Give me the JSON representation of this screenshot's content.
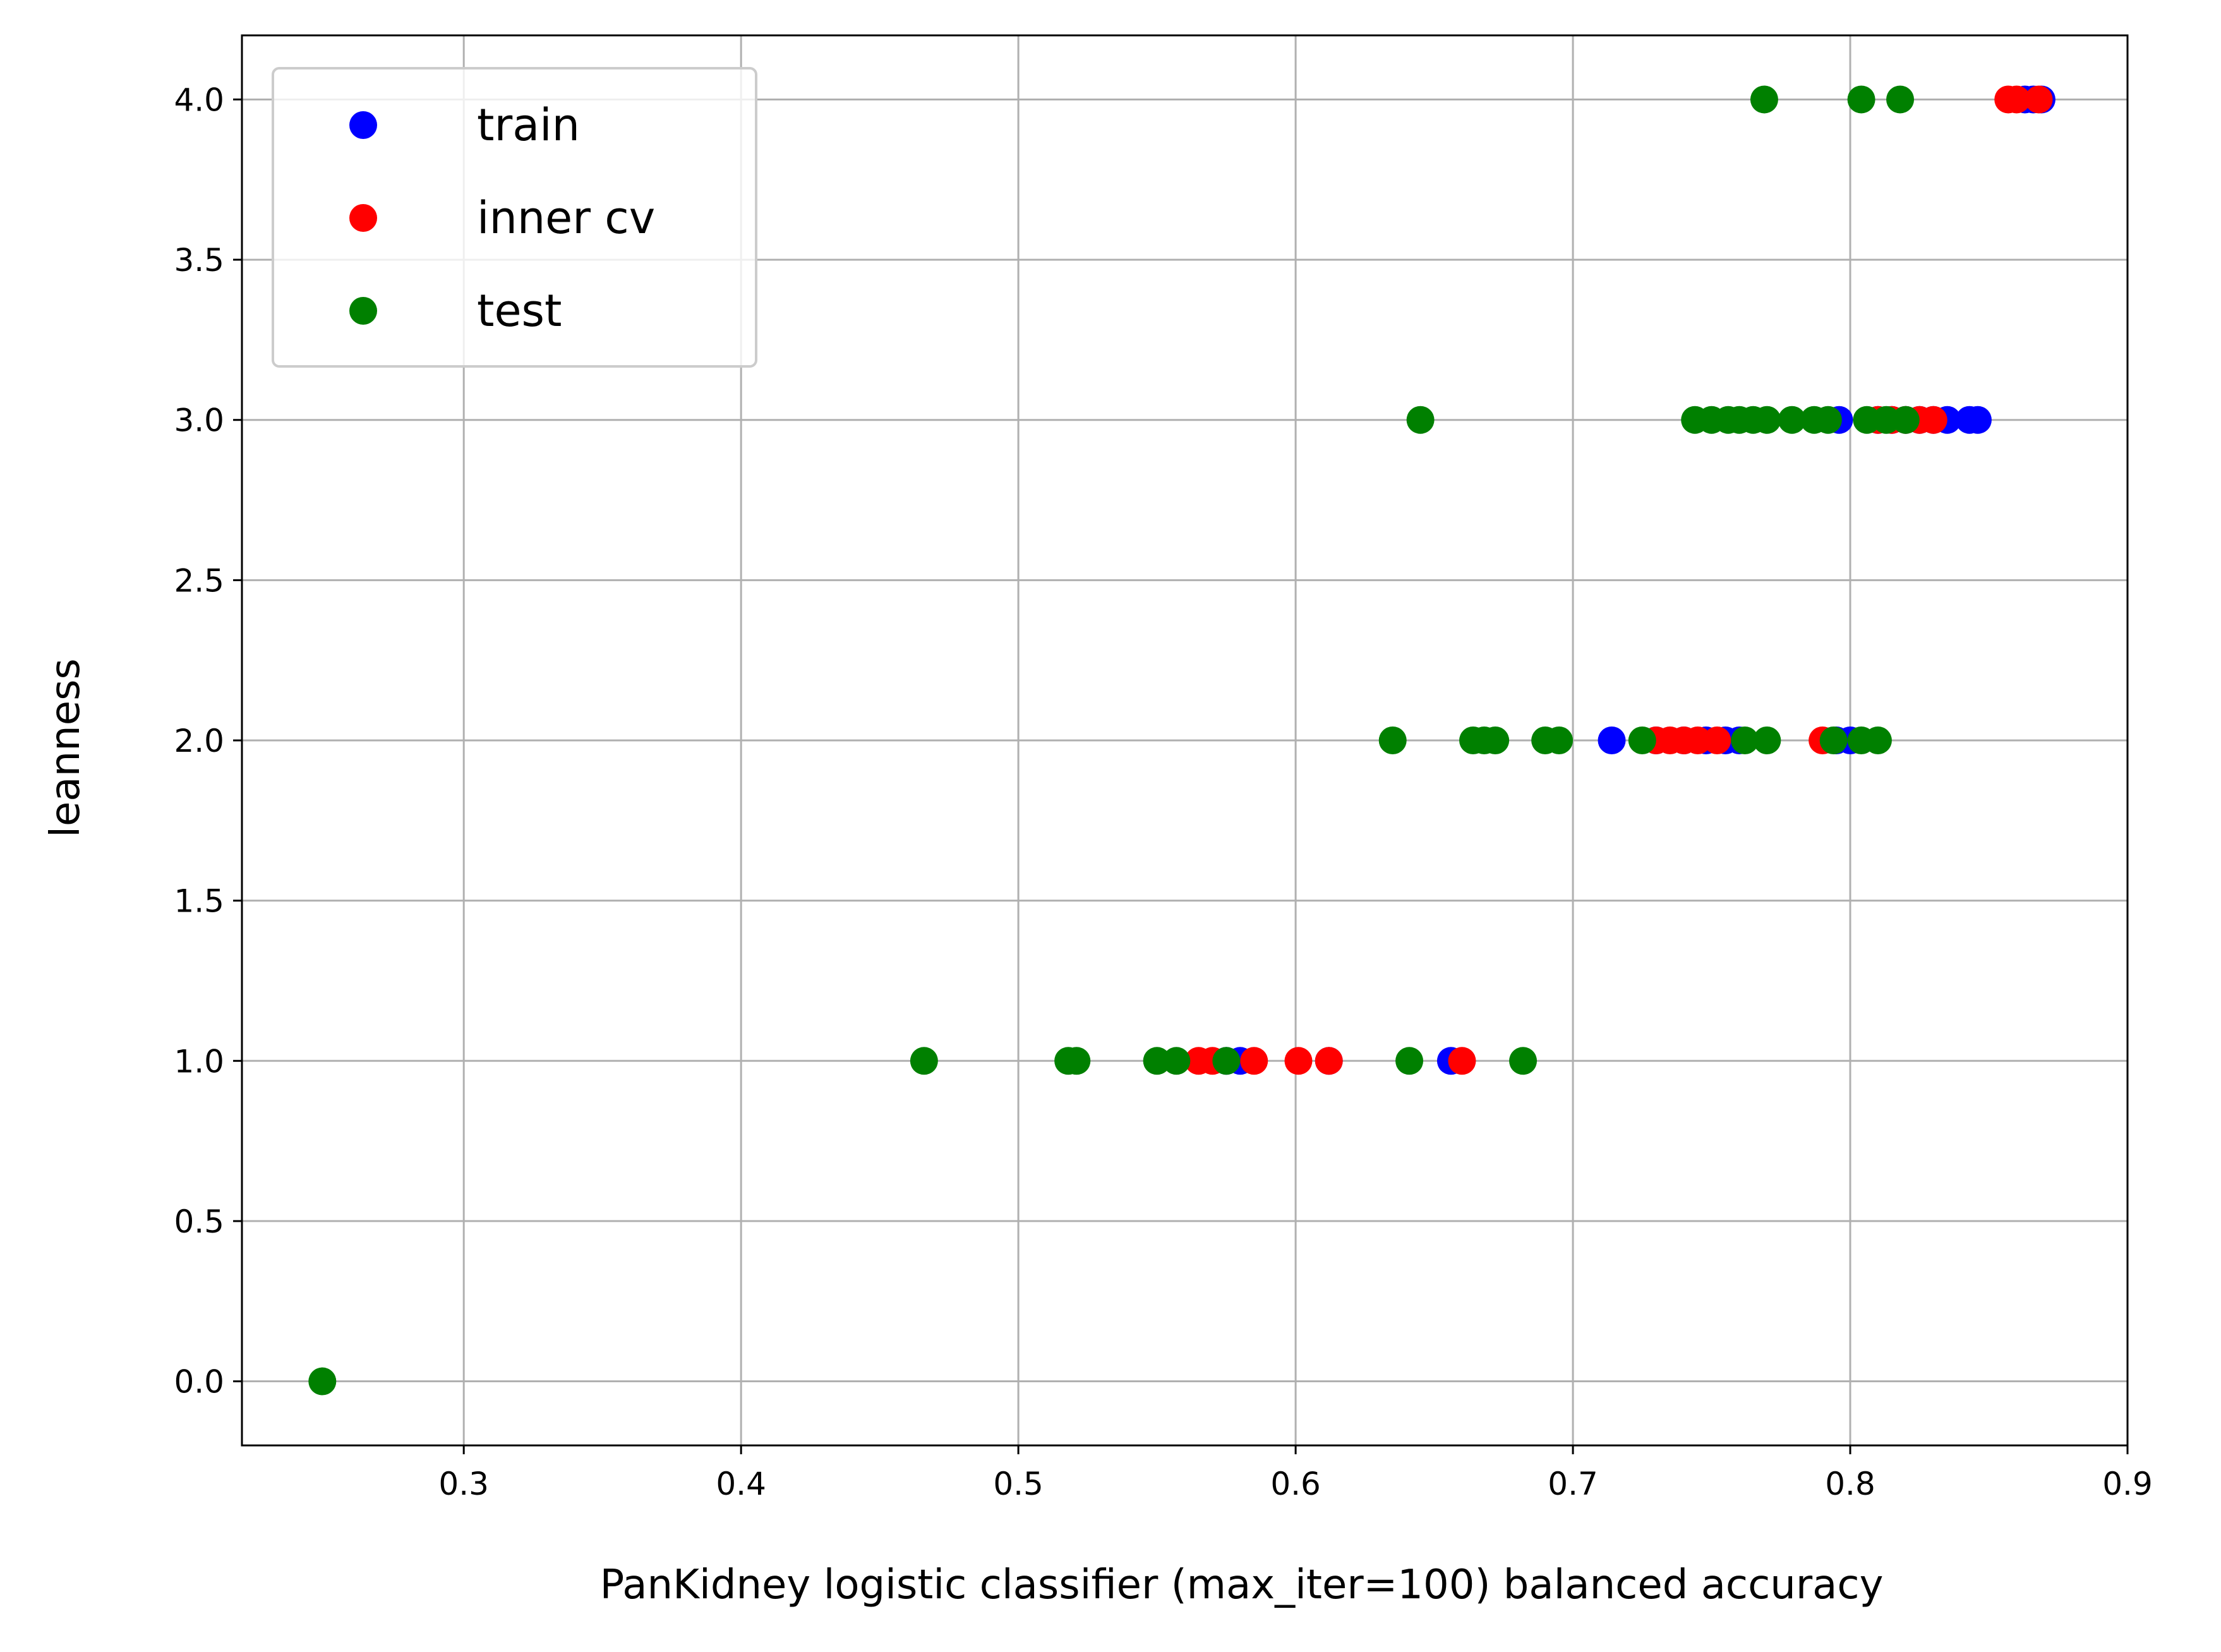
{
  "chart_data": {
    "type": "scatter",
    "title": "",
    "xlabel": "PanKidney logistic classifier (max_iter=100) balanced accuracy",
    "ylabel": "leanness",
    "xlim": [
      0.22,
      0.9
    ],
    "ylim": [
      -0.2,
      4.2
    ],
    "x_ticks": [
      "0.3",
      "0.4",
      "0.5",
      "0.6",
      "0.7",
      "0.8",
      "0.9"
    ],
    "y_ticks": [
      "0.0",
      "0.5",
      "1.0",
      "1.5",
      "2.0",
      "2.5",
      "3.0",
      "3.5",
      "4.0"
    ],
    "grid": true,
    "legend_position": "top-left",
    "series": [
      {
        "name": "train",
        "color": "#0000ff",
        "points": [
          [
            0.863,
            4
          ],
          [
            0.866,
            4
          ],
          [
            0.869,
            4
          ],
          [
            0.796,
            3
          ],
          [
            0.81,
            3
          ],
          [
            0.815,
            3
          ],
          [
            0.82,
            3
          ],
          [
            0.825,
            3
          ],
          [
            0.83,
            3
          ],
          [
            0.835,
            3
          ],
          [
            0.843,
            3
          ],
          [
            0.846,
            3
          ],
          [
            0.714,
            2
          ],
          [
            0.73,
            2
          ],
          [
            0.74,
            2
          ],
          [
            0.748,
            2
          ],
          [
            0.755,
            2
          ],
          [
            0.76,
            2
          ],
          [
            0.795,
            2
          ],
          [
            0.8,
            2
          ],
          [
            0.575,
            1
          ],
          [
            0.58,
            1
          ],
          [
            0.612,
            1
          ],
          [
            0.656,
            1
          ]
        ]
      },
      {
        "name": "inner cv",
        "color": "#ff0000",
        "points": [
          [
            0.857,
            4
          ],
          [
            0.86,
            4
          ],
          [
            0.868,
            4
          ],
          [
            0.81,
            3
          ],
          [
            0.815,
            3
          ],
          [
            0.82,
            3
          ],
          [
            0.825,
            3
          ],
          [
            0.83,
            3
          ],
          [
            0.73,
            2
          ],
          [
            0.735,
            2
          ],
          [
            0.74,
            2
          ],
          [
            0.745,
            2
          ],
          [
            0.752,
            2
          ],
          [
            0.79,
            2
          ],
          [
            0.565,
            1
          ],
          [
            0.57,
            1
          ],
          [
            0.585,
            1
          ],
          [
            0.601,
            1
          ],
          [
            0.612,
            1
          ],
          [
            0.66,
            1
          ]
        ]
      },
      {
        "name": "test",
        "color": "#008000",
        "points": [
          [
            0.769,
            4
          ],
          [
            0.804,
            4
          ],
          [
            0.818,
            4
          ],
          [
            0.645,
            3
          ],
          [
            0.744,
            3
          ],
          [
            0.75,
            3
          ],
          [
            0.756,
            3
          ],
          [
            0.76,
            3
          ],
          [
            0.765,
            3
          ],
          [
            0.77,
            3
          ],
          [
            0.779,
            3
          ],
          [
            0.787,
            3
          ],
          [
            0.792,
            3
          ],
          [
            0.806,
            3
          ],
          [
            0.813,
            3
          ],
          [
            0.82,
            3
          ],
          [
            0.635,
            2
          ],
          [
            0.664,
            2
          ],
          [
            0.668,
            2
          ],
          [
            0.672,
            2
          ],
          [
            0.69,
            2
          ],
          [
            0.695,
            2
          ],
          [
            0.725,
            2
          ],
          [
            0.762,
            2
          ],
          [
            0.77,
            2
          ],
          [
            0.794,
            2
          ],
          [
            0.804,
            2
          ],
          [
            0.81,
            2
          ],
          [
            0.466,
            1
          ],
          [
            0.518,
            1
          ],
          [
            0.521,
            1
          ],
          [
            0.55,
            1
          ],
          [
            0.557,
            1
          ],
          [
            0.575,
            1
          ],
          [
            0.641,
            1
          ],
          [
            0.682,
            1
          ],
          [
            0.249,
            0
          ]
        ]
      }
    ]
  }
}
